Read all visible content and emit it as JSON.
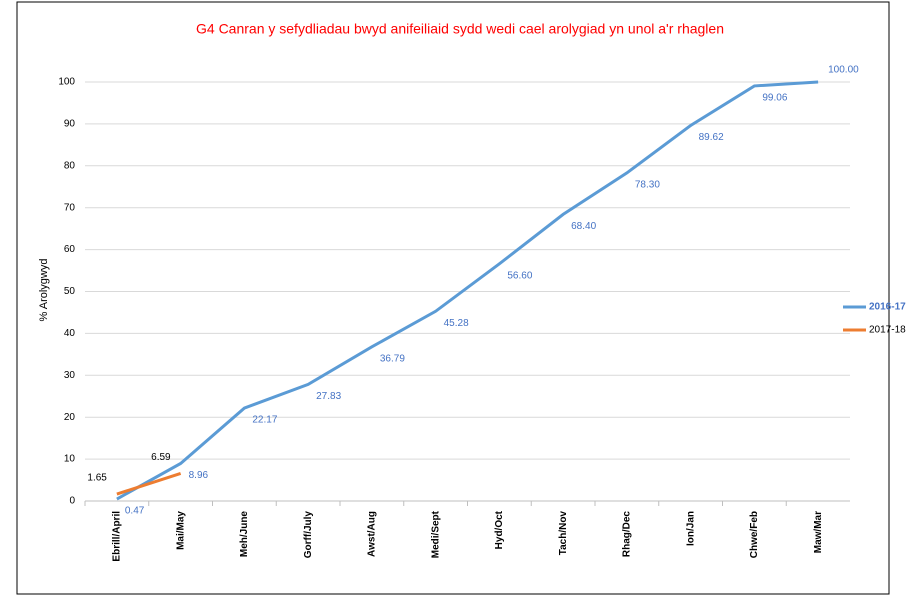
{
  "chart_data": {
    "type": "line",
    "title": "G4 Canran y sefydliadau bwyd anifeiliaid sydd wedi cael arolygiad yn unol a'r rhaglen",
    "y_label": "% Arolygwyd",
    "categories": [
      "Ebrill/April",
      "Mai/May",
      "Meh/June",
      "Gorff/July",
      "Awst/Aug",
      "Medi/Sept",
      "Hyd/Oct",
      "Tach/Nov",
      "Rhag/Dec",
      "Ion/Jan",
      "Chwe/Feb",
      "Maw/Mar"
    ],
    "series": [
      {
        "name": "2016-17",
        "color": "#5b9bd5",
        "values": [
          0.47,
          8.96,
          22.17,
          27.83,
          36.79,
          45.28,
          56.6,
          68.4,
          78.3,
          89.62,
          99.06,
          100
        ],
        "value_labels": [
          "0.47",
          "8.96",
          "22.17",
          "27.83",
          "36.79",
          "45.28",
          "56.60",
          "68.40",
          "78.30",
          "89.62",
          "99.06",
          "100.00"
        ]
      },
      {
        "name": "2017-18",
        "color": "#ed7d31",
        "values": [
          1.65,
          6.59,
          null,
          null,
          null,
          null,
          null,
          null,
          null,
          null,
          null,
          null
        ]
      }
    ],
    "ylim": [
      0,
      100
    ],
    "yticks": [
      0,
      10,
      20,
      30,
      40,
      50,
      60,
      70,
      80,
      90,
      100
    ],
    "grid": true,
    "legend": "right"
  }
}
